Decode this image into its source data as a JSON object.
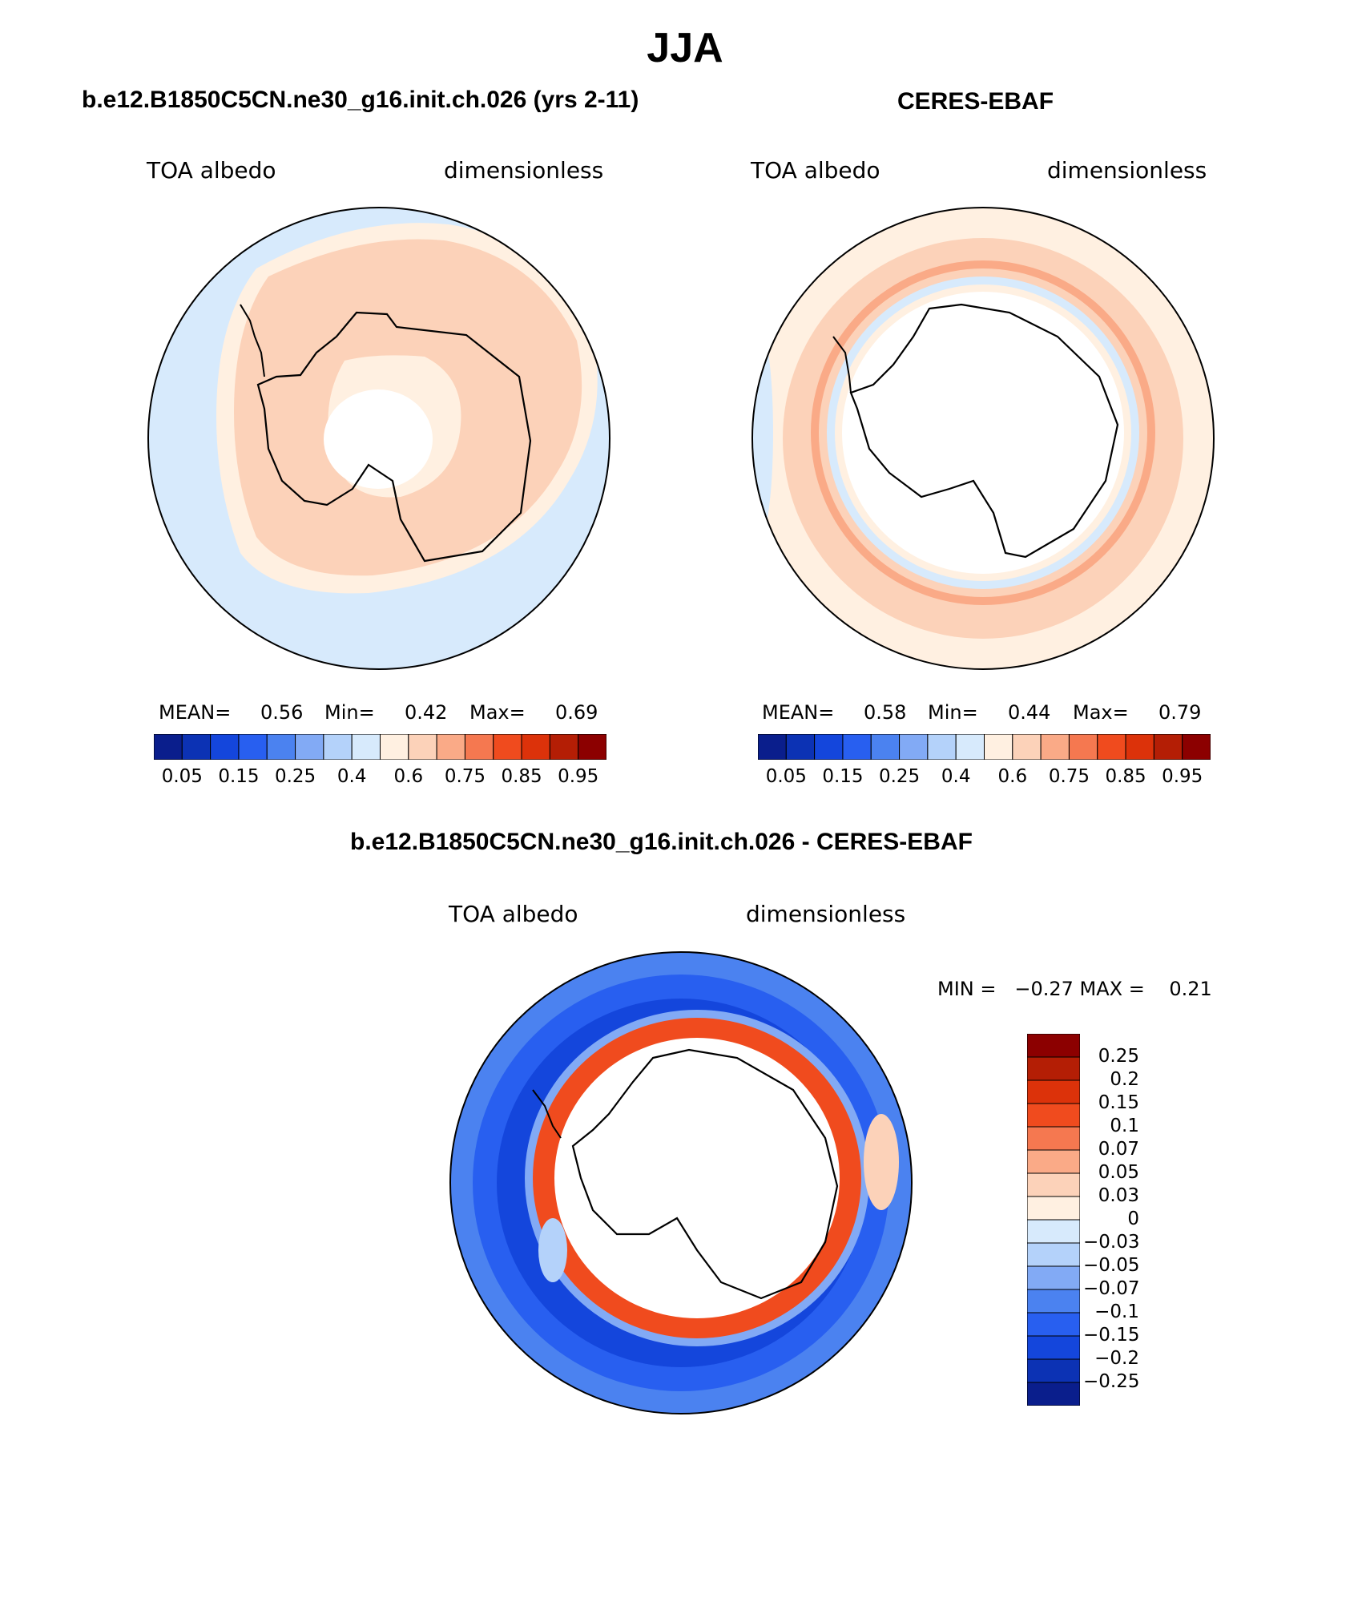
{
  "title": "JJA",
  "panels": {
    "model": {
      "title": "b.e12.B1850C5CN.ne30_g16.init.ch.026 (yrs 2-11)",
      "left_label": "TOA albedo",
      "right_label": "dimensionless",
      "stats": {
        "mean_label": "MEAN=",
        "mean": "0.56",
        "min_label": "Min=",
        "min": "0.42",
        "max_label": "Max=",
        "max": "0.69"
      }
    },
    "obs": {
      "title": "CERES-EBAF",
      "left_label": "TOA albedo",
      "right_label": "dimensionless",
      "stats": {
        "mean_label": "MEAN=",
        "mean": "0.58",
        "min_label": "Min=",
        "min": "0.44",
        "max_label": "Max=",
        "max": "0.79"
      }
    },
    "diff": {
      "title": "b.e12.B1850C5CN.ne30_g16.init.ch.026 - CERES-EBAF",
      "left_label": "TOA albedo",
      "right_label": "dimensionless",
      "minmax": "MIN =   −0.27 MAX =    0.21"
    }
  },
  "colorbar_horizontal": {
    "colors": [
      "#0a1e8c",
      "#0c32b4",
      "#1446dc",
      "#285ff0",
      "#4b82f0",
      "#82aaf5",
      "#b4d2fa",
      "#d7eafc",
      "#fff0e1",
      "#fcd2b9",
      "#faaa87",
      "#f57850",
      "#f04b1e",
      "#dc320a",
      "#b41e05",
      "#8c0000"
    ],
    "tick_labels": [
      "0.05",
      "0.15",
      "0.25",
      "0.4",
      "0.6",
      "0.75",
      "0.85",
      "0.95"
    ]
  },
  "colorbar_vertical": {
    "colors_top_to_bottom": [
      "#8c0000",
      "#b41e05",
      "#dc320a",
      "#f04b1e",
      "#f57850",
      "#faaa87",
      "#fcd2b9",
      "#fff0e1",
      "#d7eafc",
      "#b4d2fa",
      "#82aaf5",
      "#4b82f0",
      "#285ff0",
      "#1446dc",
      "#0c32b4",
      "#0a1e8c"
    ],
    "tick_labels": [
      "0.25",
      "0.2",
      "0.15",
      "0.1",
      "0.07",
      "0.05",
      "0.03",
      "0",
      "−0.03",
      "−0.05",
      "−0.07",
      "−0.1",
      "−0.15",
      "−0.2",
      "−0.25"
    ]
  }
}
